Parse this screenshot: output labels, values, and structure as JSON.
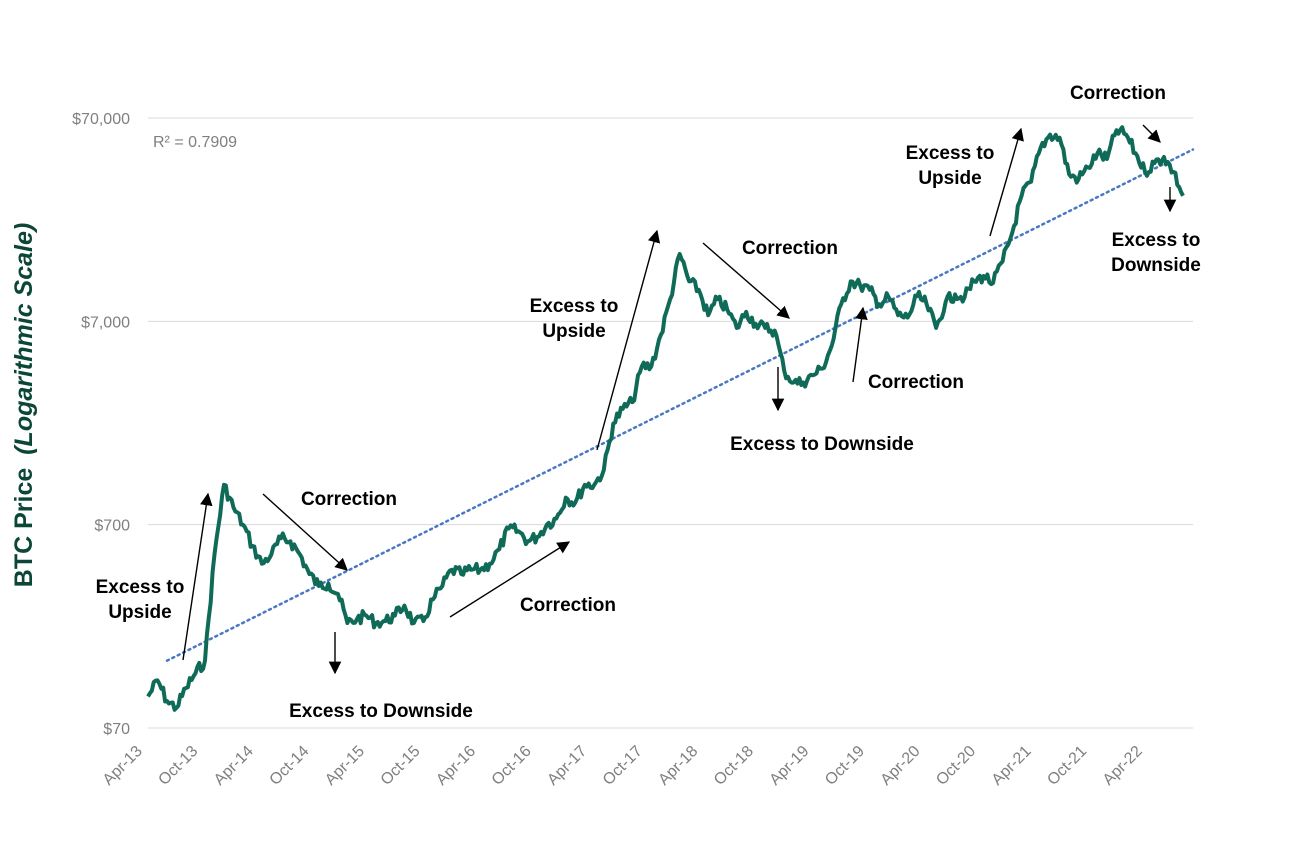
{
  "chart_data": {
    "type": "line",
    "ylabel": "BTC Price",
    "ylabel_italic": "(Logarithmic Scale)",
    "y_scale": "log",
    "ylim": [
      70,
      70000
    ],
    "y_ticks": [
      "$70,000",
      "$7,000",
      "$700",
      "$70"
    ],
    "y_tick_values": [
      70000,
      7000,
      700,
      70
    ],
    "x_ticks": [
      "Apr-13",
      "Oct-13",
      "Apr-14",
      "Oct-14",
      "Apr-15",
      "Oct-15",
      "Apr-16",
      "Oct-16",
      "Apr-17",
      "Oct-17",
      "Apr-18",
      "Oct-18",
      "Apr-19",
      "Oct-19",
      "Apr-20",
      "Oct-20",
      "Apr-21",
      "Oct-21",
      "Apr-22"
    ],
    "r_squared_label": "R² = 0.7909",
    "colors": {
      "price_line": "#0f6b57",
      "trend_line": "#4a78c2",
      "grid": "#d9d9d9",
      "ylabel": "#0b4636",
      "annotation": "#000000"
    },
    "series": [
      {
        "style": "solid",
        "x": [
          "2013-04",
          "2013-05",
          "2013-06",
          "2013-07",
          "2013-08",
          "2013-09",
          "2013-10",
          "2013-11",
          "2013-12",
          "2014-01",
          "2014-02",
          "2014-03",
          "2014-04",
          "2014-05",
          "2014-06",
          "2014-07",
          "2014-08",
          "2014-09",
          "2014-10",
          "2014-11",
          "2014-12",
          "2015-01",
          "2015-02",
          "2015-03",
          "2015-04",
          "2015-05",
          "2015-06",
          "2015-07",
          "2015-08",
          "2015-09",
          "2015-10",
          "2015-11",
          "2015-12",
          "2016-01",
          "2016-02",
          "2016-03",
          "2016-04",
          "2016-05",
          "2016-06",
          "2016-07",
          "2016-08",
          "2016-09",
          "2016-10",
          "2016-11",
          "2016-12",
          "2017-01",
          "2017-02",
          "2017-03",
          "2017-04",
          "2017-05",
          "2017-06",
          "2017-07",
          "2017-08",
          "2017-09",
          "2017-10",
          "2017-11",
          "2017-12",
          "2018-01",
          "2018-02",
          "2018-03",
          "2018-04",
          "2018-05",
          "2018-06",
          "2018-07",
          "2018-08",
          "2018-09",
          "2018-10",
          "2018-11",
          "2018-12",
          "2019-01",
          "2019-02",
          "2019-03",
          "2019-04",
          "2019-05",
          "2019-06",
          "2019-07",
          "2019-08",
          "2019-09",
          "2019-10",
          "2019-11",
          "2019-12",
          "2020-01",
          "2020-02",
          "2020-03",
          "2020-04",
          "2020-05",
          "2020-06",
          "2020-07",
          "2020-08",
          "2020-09",
          "2020-10",
          "2020-11",
          "2020-12",
          "2021-01",
          "2021-02",
          "2021-03",
          "2021-04",
          "2021-05",
          "2021-06",
          "2021-07",
          "2021-08",
          "2021-09",
          "2021-10",
          "2021-11",
          "2021-12",
          "2022-01",
          "2022-02",
          "2022-03",
          "2022-04",
          "2022-05"
        ],
        "values": [
          100,
          120,
          95,
          88,
          110,
          130,
          150,
          500,
          1100,
          850,
          700,
          550,
          450,
          500,
          600,
          580,
          500,
          400,
          350,
          360,
          320,
          230,
          240,
          250,
          230,
          235,
          250,
          280,
          230,
          235,
          300,
          350,
          420,
          400,
          420,
          420,
          450,
          530,
          670,
          650,
          580,
          610,
          700,
          750,
          950,
          900,
          1100,
          1100,
          1300,
          2200,
          2600,
          2800,
          4200,
          4200,
          6000,
          9000,
          15000,
          11000,
          10000,
          7500,
          9000,
          8000,
          6500,
          7800,
          6800,
          6500,
          6300,
          4000,
          3500,
          3500,
          3800,
          4100,
          5300,
          8500,
          11000,
          10500,
          10000,
          8500,
          9200,
          7500,
          7300,
          9300,
          8500,
          6500,
          8700,
          9500,
          9200,
          11000,
          11700,
          10800,
          13800,
          19000,
          29000,
          34000,
          50000,
          58000,
          56000,
          37000,
          35000,
          40000,
          47000,
          44000,
          61000,
          58000,
          47000,
          38000,
          42000,
          45000,
          38000,
          29000
        ]
      }
    ],
    "trend": {
      "style": "dotted",
      "x_start": "2013-06",
      "y_start": 150,
      "x_end": "2022-06",
      "y_end": 49000
    },
    "annotations": [
      {
        "lines": [
          "Excess to",
          "Upside"
        ]
      },
      {
        "lines": [
          "Correction"
        ]
      },
      {
        "lines": [
          "Excess to Downside"
        ]
      },
      {
        "lines": [
          "Correction"
        ]
      },
      {
        "lines": [
          "Excess to",
          "Upside"
        ]
      },
      {
        "lines": [
          "Correction"
        ]
      },
      {
        "lines": [
          "Excess to Downside"
        ]
      },
      {
        "lines": [
          "Correction"
        ]
      },
      {
        "lines": [
          "Excess to",
          "Upside"
        ]
      },
      {
        "lines": [
          "Correction"
        ]
      },
      {
        "lines": [
          "Excess to",
          "Downside"
        ]
      }
    ]
  }
}
